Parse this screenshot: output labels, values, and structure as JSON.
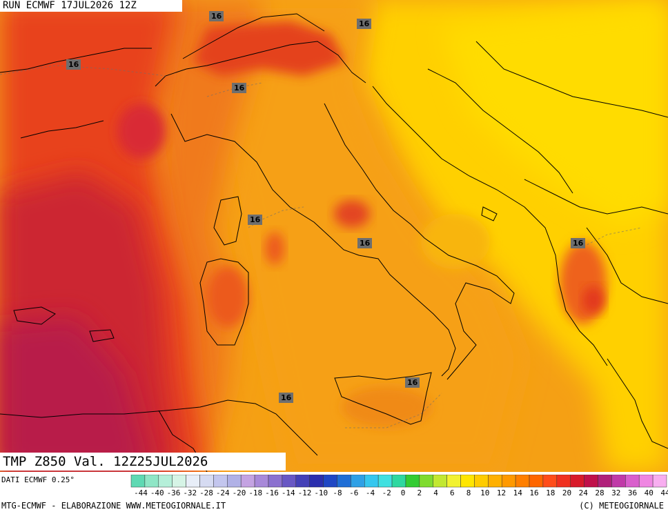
{
  "header": {
    "run_title": "RUN ECMWF 17JUL2026 12Z",
    "variable_title": "TMP Z850 Val. 12Z25JUL2026"
  },
  "isotherm_labels": [
    "16",
    "16",
    "16",
    "16",
    "16",
    "16",
    "16",
    "16",
    "16"
  ],
  "legend": {
    "source_note": "DATI ECMWF 0.25°",
    "ticks": [
      "-44",
      "-40",
      "-36",
      "-32",
      "-28",
      "-24",
      "-20",
      "-18",
      "-16",
      "-14",
      "-12",
      "-10",
      "-8",
      "-6",
      "-4",
      "-2",
      "0",
      "2",
      "4",
      "6",
      "8",
      "10",
      "12",
      "14",
      "16",
      "18",
      "20",
      "24",
      "28",
      "32",
      "36",
      "40",
      "44"
    ],
    "colors": [
      "#5fd9b3",
      "#8fe6c6",
      "#b5efd9",
      "#d6f4e6",
      "#e8eef8",
      "#d6dbf2",
      "#c3c6ee",
      "#b0b1e6",
      "#c4a3e2",
      "#a889d9",
      "#8b71cf",
      "#6857c4",
      "#4440b7",
      "#2b2fae",
      "#1f47c4",
      "#1f6ed6",
      "#2ea0e6",
      "#35c7ef",
      "#40e0e0",
      "#2ed8a0",
      "#33cc33",
      "#7fdb2e",
      "#c2e830",
      "#f2f230",
      "#ffe600",
      "#ffcc00",
      "#ffb000",
      "#ff9900",
      "#ff7f00",
      "#ff6600",
      "#ff4d1a",
      "#f0301f",
      "#d81a2a",
      "#c0104a",
      "#b0207a",
      "#c03aa8",
      "#d95fcc",
      "#ef86e2",
      "#f8aef0"
    ]
  },
  "credits": {
    "left": "MTG-ECMWF - ELABORAZIONE WWW.METEOGIORNALE.IT",
    "right": "(C) METEOGIORNALE"
  },
  "colors": {
    "hot_core": "#c8262e",
    "hot_west": "#e03a2a",
    "warm": "#f06a1e",
    "mid": "#f59a14",
    "mild": "#fbc40a",
    "cool_east": "#ffd800",
    "coast_line": "#000000",
    "label_bg": "#6e6e6e"
  }
}
